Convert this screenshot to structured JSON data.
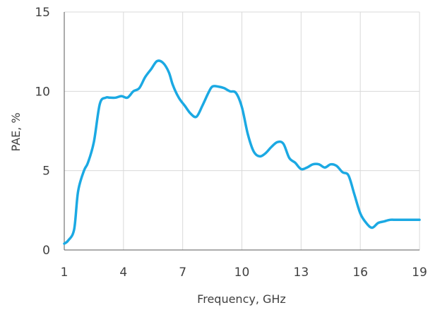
{
  "chart_data": {
    "type": "line",
    "xlabel": "Frequency, GHz",
    "ylabel": "PAE, %",
    "xlim": [
      1,
      19
    ],
    "ylim": [
      0,
      15
    ],
    "x_ticks": [
      1,
      4,
      7,
      10,
      13,
      16,
      19
    ],
    "y_ticks": [
      0,
      5,
      10,
      15
    ],
    "x_tick_labels": [
      "1",
      "4",
      "7",
      "10",
      "13",
      "16",
      "19"
    ],
    "y_tick_labels": [
      "0",
      "5",
      "10",
      "15"
    ],
    "grid": true,
    "legend": "none",
    "series": [
      {
        "color": "#1ba9e3",
        "x": [
          1.0,
          1.2,
          1.5,
          1.7,
          2.0,
          2.2,
          2.5,
          2.8,
          3.1,
          3.3,
          3.6,
          3.9,
          4.2,
          4.5,
          4.8,
          5.1,
          5.4,
          5.7,
          6.0,
          6.3,
          6.5,
          6.8,
          7.1,
          7.4,
          7.7,
          8.0,
          8.3,
          8.5,
          8.8,
          9.1,
          9.4,
          9.7,
          10.0,
          10.3,
          10.6,
          10.9,
          11.2,
          11.5,
          11.8,
          12.1,
          12.4,
          12.7,
          13.0,
          13.3,
          13.6,
          13.9,
          14.2,
          14.5,
          14.8,
          15.1,
          15.4,
          15.7,
          16.0,
          16.3,
          16.6,
          16.9,
          17.2,
          17.5,
          17.8,
          18.1,
          18.4,
          18.7,
          18.9,
          19.0
        ],
        "y": [
          0.4,
          0.6,
          1.3,
          3.7,
          5.0,
          5.5,
          6.8,
          9.2,
          9.6,
          9.6,
          9.6,
          9.7,
          9.6,
          10.0,
          10.2,
          10.9,
          11.4,
          11.9,
          11.8,
          11.2,
          10.4,
          9.6,
          9.1,
          8.6,
          8.4,
          9.1,
          9.9,
          10.3,
          10.3,
          10.2,
          10.0,
          9.9,
          9.0,
          7.3,
          6.2,
          5.9,
          6.1,
          6.5,
          6.8,
          6.7,
          5.8,
          5.5,
          5.1,
          5.2,
          5.4,
          5.4,
          5.2,
          5.4,
          5.3,
          4.9,
          4.7,
          3.5,
          2.3,
          1.7,
          1.4,
          1.7,
          1.8,
          1.9,
          1.9,
          1.9,
          1.9,
          1.9,
          1.9,
          1.9
        ]
      }
    ]
  }
}
